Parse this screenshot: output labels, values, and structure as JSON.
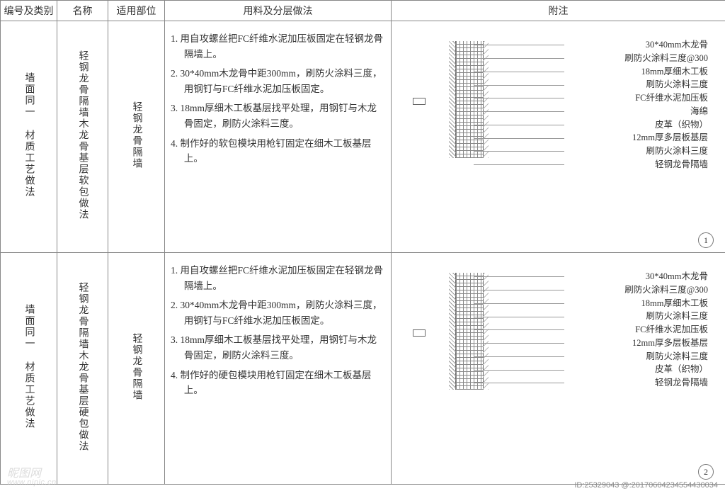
{
  "headers": {
    "c1": "编号及类别",
    "c2": "名称",
    "c3": "适用部位",
    "c4": "用料及分层做法",
    "c5": "附注"
  },
  "rows": [
    {
      "category": "墙面同一 材质工艺做法",
      "name": "轻钢龙骨隔墙木龙骨基层软包做法",
      "applicable": "轻钢龙骨隔墙",
      "method": [
        "1. 用自攻螺丝把FC纤维水泥加压板固定在轻钢龙骨隔墙上。",
        "2. 30*40mm木龙骨中距300mm，刷防火涂料三度，用钢钉与FC纤维水泥加压板固定。",
        "3. 18mm厚细木工板基层找平处理，用钢钉与木龙骨固定，刷防火涂料三度。",
        "4. 制作好的软包模块用枪钉固定在细木工板基层上。"
      ],
      "labels": [
        "30*40mm木龙骨",
        "刷防火涂料三度@300",
        "18mm厚细木工板",
        "刷防火涂料三度",
        "FC纤维水泥加压板",
        "海绵",
        "皮革（织物）",
        "12mm厚多层板基层",
        "刷防火涂料三度",
        "轻钢龙骨隔墙"
      ],
      "page": "1"
    },
    {
      "category": "墙面同一 材质工艺做法",
      "name": "轻钢龙骨隔墙木龙骨基层硬包做法",
      "applicable": "轻钢龙骨隔墙",
      "method": [
        "1. 用自攻螺丝把FC纤维水泥加压板固定在轻钢龙骨隔墙上。",
        "2. 30*40mm木龙骨中距300mm，刷防火涂料三度，用钢钉与FC纤维水泥加压板固定。",
        "3. 18mm厚细木工板基层找平处理，用钢钉与木龙骨固定，刷防火涂料三度。",
        "4. 制作好的硬包模块用枪钉固定在细木工板基层上。"
      ],
      "labels": [
        "30*40mm木龙骨",
        "刷防火涂料三度@300",
        "18mm厚细木工板",
        "刷防火涂料三度",
        "FC纤维水泥加压板",
        "12mm厚多层板基层",
        "刷防火涂料三度",
        "皮革（织物）",
        "轻钢龙骨隔墙"
      ],
      "page": "2"
    }
  ],
  "watermark": {
    "brand": "昵图网",
    "url": "www.nipic.cn"
  },
  "idString": "ID:25329043 @:20170604234554430034"
}
